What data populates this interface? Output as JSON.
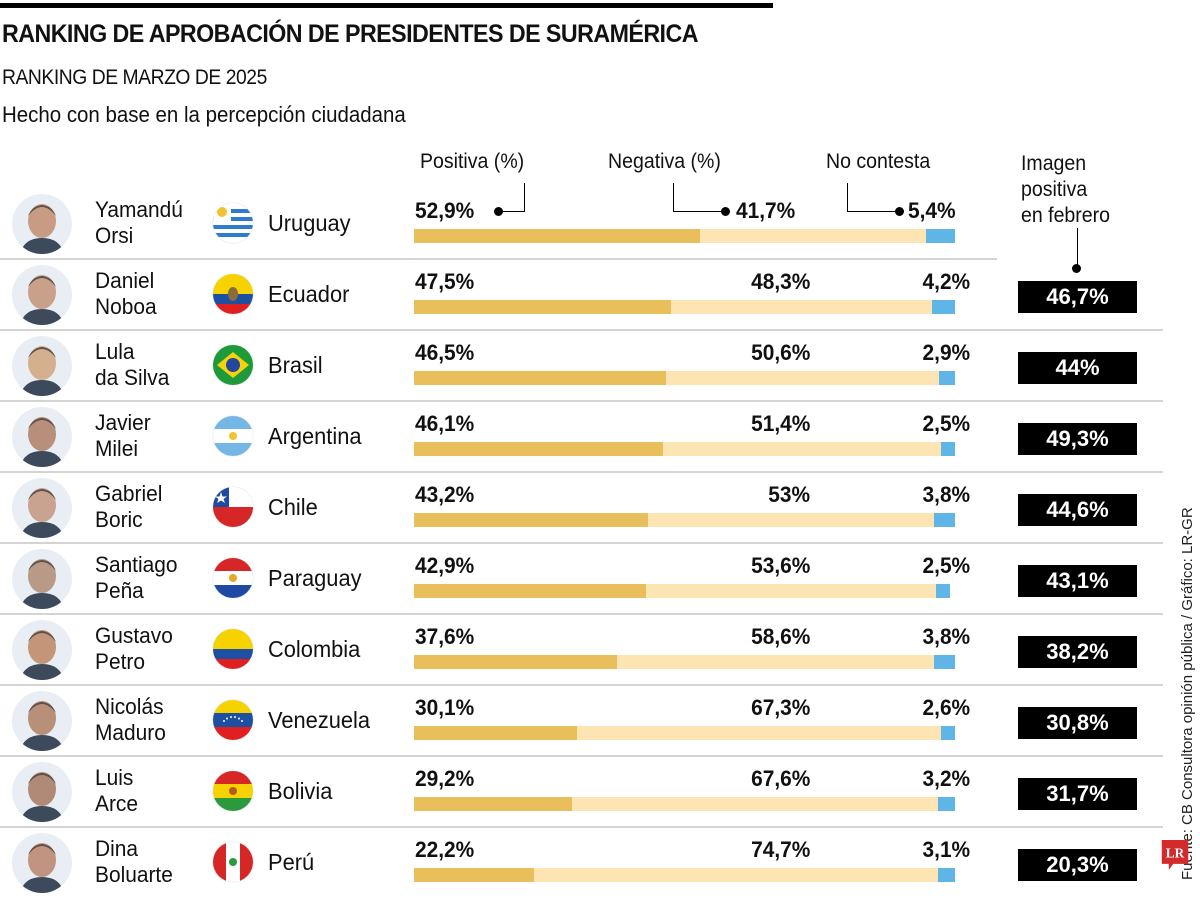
{
  "header": {
    "title": "RANKING DE APROBACIÓN DE PRESIDENTES DE SURAMÉRICA",
    "subtitle": "RANKING DE MARZO DE 2025",
    "description": "Hecho con base en la percepción ciudadana"
  },
  "legend": {
    "positive": "Positiva (%)",
    "negative": "Negativa (%)",
    "no_answer": "No contesta",
    "february": "Imagen positiva en febrero",
    "february_lines": [
      "Imagen",
      "positiva",
      "en febrero"
    ]
  },
  "colors": {
    "positive": "#e9bf5c",
    "negative": "#fde4b3",
    "no_answer": "#5fb5e5",
    "separator": "#d4d4d4",
    "feb_box": "#000000",
    "logo": "#d32a2c"
  },
  "source": "Fuente: CB Consultora opinión pública / Gráfico: LR-GR",
  "logo_text": "LR",
  "chart_data": {
    "type": "bar",
    "stacked": true,
    "orientation": "horizontal",
    "title": "RANKING DE APROBACIÓN DE PRESIDENTES DE SURAMÉRICA",
    "subtitle": "RANKING DE MARZO DE 2025",
    "xlim": [
      0,
      100
    ],
    "legend": [
      "Positiva (%)",
      "Negativa (%)",
      "No contesta"
    ],
    "rows": [
      {
        "name_lines": [
          "Yamandú",
          "Orsi"
        ],
        "country": "Uruguay",
        "flag": "uruguay",
        "positive": 52.9,
        "negative": 41.7,
        "no_answer": 5.4,
        "positive_label": "52,9%",
        "negative_label": "41,7%",
        "no_answer_label": "5,4%",
        "february": null,
        "february_label": ""
      },
      {
        "name_lines": [
          "Daniel",
          "Noboa"
        ],
        "country": "Ecuador",
        "flag": "ecuador",
        "positive": 47.5,
        "negative": 48.3,
        "no_answer": 4.2,
        "positive_label": "47,5%",
        "negative_label": "48,3%",
        "no_answer_label": "4,2%",
        "february": 46.7,
        "february_label": "46,7%"
      },
      {
        "name_lines": [
          "Lula",
          "da Silva"
        ],
        "country": "Brasil",
        "flag": "brasil",
        "positive": 46.5,
        "negative": 50.6,
        "no_answer": 2.9,
        "positive_label": "46,5%",
        "negative_label": "50,6%",
        "no_answer_label": "2,9%",
        "february": 44,
        "february_label": "44%"
      },
      {
        "name_lines": [
          "Javier",
          "Milei"
        ],
        "country": "Argentina",
        "flag": "argentina",
        "positive": 46.1,
        "negative": 51.4,
        "no_answer": 2.5,
        "positive_label": "46,1%",
        "negative_label": "51,4%",
        "no_answer_label": "2,5%",
        "february": 49.3,
        "february_label": "49,3%"
      },
      {
        "name_lines": [
          "Gabriel",
          "Boric"
        ],
        "country": "Chile",
        "flag": "chile",
        "positive": 43.2,
        "negative": 53,
        "no_answer": 3.8,
        "positive_label": "43,2%",
        "negative_label": "53%",
        "no_answer_label": "3,8%",
        "february": 44.6,
        "february_label": "44,6%"
      },
      {
        "name_lines": [
          "Santiago",
          "Peña"
        ],
        "country": "Paraguay",
        "flag": "paraguay",
        "positive": 42.9,
        "negative": 53.6,
        "no_answer": 2.5,
        "positive_label": "42,9%",
        "negative_label": "53,6%",
        "no_answer_label": "2,5%",
        "february": 43.1,
        "february_label": "43,1%"
      },
      {
        "name_lines": [
          "Gustavo",
          "Petro"
        ],
        "country": "Colombia",
        "flag": "colombia",
        "positive": 37.6,
        "negative": 58.6,
        "no_answer": 3.8,
        "positive_label": "37,6%",
        "negative_label": "58,6%",
        "no_answer_label": "3,8%",
        "february": 38.2,
        "february_label": "38,2%"
      },
      {
        "name_lines": [
          "Nicolás",
          "Maduro"
        ],
        "country": "Venezuela",
        "flag": "venezuela",
        "positive": 30.1,
        "negative": 67.3,
        "no_answer": 2.6,
        "positive_label": "30,1%",
        "negative_label": "67,3%",
        "no_answer_label": "2,6%",
        "february": 30.8,
        "february_label": "30,8%"
      },
      {
        "name_lines": [
          "Luis",
          "Arce"
        ],
        "country": "Bolivia",
        "flag": "bolivia",
        "positive": 29.2,
        "negative": 67.6,
        "no_answer": 3.2,
        "positive_label": "29,2%",
        "negative_label": "67,6%",
        "no_answer_label": "3,2%",
        "february": 31.7,
        "february_label": "31,7%"
      },
      {
        "name_lines": [
          "Dina",
          "Boluarte"
        ],
        "country": "Perú",
        "flag": "peru",
        "positive": 22.2,
        "negative": 74.7,
        "no_answer": 3.1,
        "positive_label": "22,2%",
        "negative_label": "74,7%",
        "no_answer_label": "3,1%",
        "february": 20.3,
        "february_label": "20,3%"
      }
    ]
  }
}
